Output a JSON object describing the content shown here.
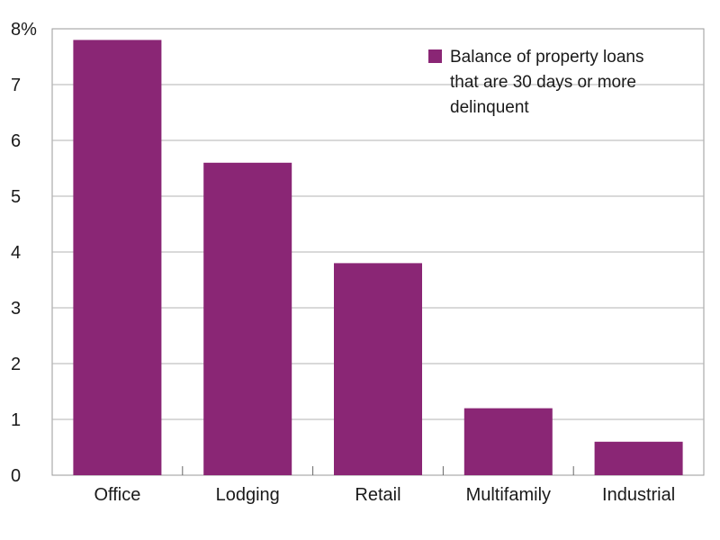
{
  "chart_data": {
    "type": "bar",
    "categories": [
      "Office",
      "Lodging",
      "Retail",
      "Multifamily",
      "Industrial"
    ],
    "series": [
      {
        "name": "Balance of property loans that are 30 days or more delinquent",
        "values": [
          7.8,
          5.6,
          3.8,
          1.2,
          0.6
        ],
        "color": "#8a2675"
      }
    ],
    "ylim": [
      0,
      8
    ],
    "yticks": [
      "0",
      "1",
      "2",
      "3",
      "4",
      "5",
      "6",
      "7",
      "8%"
    ],
    "grid": true,
    "legend_position": "top-right",
    "legend_lines": [
      "Balance of property loans",
      "that are 30 days or more",
      "delinquent"
    ],
    "xlabel": "",
    "ylabel": "",
    "title": ""
  }
}
